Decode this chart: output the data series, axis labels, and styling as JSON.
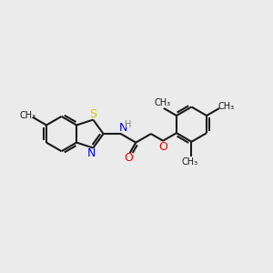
{
  "bg_color": "#ebebeb",
  "bond_color": "#1a1a1a",
  "S_color": "#cccc00",
  "N_color": "#0000ee",
  "O_color": "#ee0000",
  "H_color": "#808080",
  "line_width": 1.5,
  "dbo": 0.08,
  "xlim": [
    0,
    10
  ],
  "ylim": [
    2,
    8
  ]
}
